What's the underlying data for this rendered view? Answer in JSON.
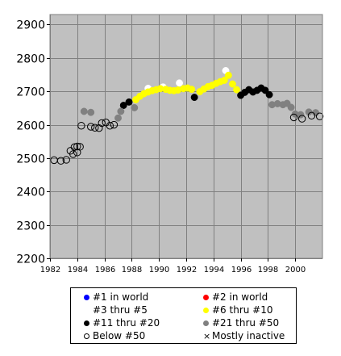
{
  "chart_data": {
    "type": "scatter",
    "title": "",
    "xlabel": "",
    "ylabel": "",
    "xlim": [
      1982,
      2002
    ],
    "ylim": [
      2200,
      2930
    ],
    "x_ticks": [
      1982,
      1984,
      1986,
      1988,
      1990,
      1992,
      1994,
      1996,
      1998,
      2000
    ],
    "y_ticks": [
      2200,
      2300,
      2400,
      2500,
      2600,
      2700,
      2800,
      2900
    ],
    "x_tick_labels": [
      "1982",
      "1984",
      "1986",
      "1988",
      "1990",
      "1992",
      "1994",
      "1996",
      "1998",
      "2000"
    ],
    "y_tick_labels": [
      "2200",
      "2300",
      "2400",
      "2500",
      "2600",
      "2700",
      "2800",
      "2900"
    ],
    "grid": true,
    "legend_placement": "bottom",
    "plot_background": "#c0c0c0",
    "series": [
      {
        "name": "#1 in world",
        "color": "#0000ff",
        "marker": "filled",
        "points": []
      },
      {
        "name": "#2 in world",
        "color": "#ff0000",
        "marker": "filled",
        "points": []
      },
      {
        "name": "#3 thru #5",
        "color": "#ffffff",
        "marker": "filled",
        "points": [
          [
            1989.2,
            2709
          ],
          [
            1990.3,
            2713
          ],
          [
            1991.5,
            2725
          ],
          [
            1994.9,
            2762
          ]
        ]
      },
      {
        "name": "#6 thru #10",
        "color": "#ffff00",
        "marker": "filled",
        "points": [
          [
            1988.3,
            2675
          ],
          [
            1988.6,
            2685
          ],
          [
            1988.9,
            2693
          ],
          [
            1989.2,
            2698
          ],
          [
            1989.5,
            2702
          ],
          [
            1989.8,
            2705
          ],
          [
            1990.1,
            2708
          ],
          [
            1990.5,
            2706
          ],
          [
            1990.8,
            2703
          ],
          [
            1991.1,
            2702
          ],
          [
            1991.4,
            2704
          ],
          [
            1991.8,
            2708
          ],
          [
            1992.1,
            2710
          ],
          [
            1992.4,
            2706
          ],
          [
            1993.0,
            2699
          ],
          [
            1993.3,
            2707
          ],
          [
            1993.6,
            2714
          ],
          [
            1993.9,
            2718
          ],
          [
            1994.2,
            2724
          ],
          [
            1994.5,
            2729
          ],
          [
            1994.8,
            2733
          ],
          [
            1995.1,
            2748
          ],
          [
            1995.4,
            2722
          ],
          [
            1995.7,
            2705
          ]
        ]
      },
      {
        "name": "#11 thru #20",
        "color": "#000000",
        "marker": "filled",
        "points": [
          [
            1987.4,
            2658
          ],
          [
            1987.8,
            2668
          ],
          [
            1992.6,
            2682
          ],
          [
            1996.0,
            2688
          ],
          [
            1996.3,
            2697
          ],
          [
            1996.6,
            2705
          ],
          [
            1996.9,
            2698
          ],
          [
            1997.2,
            2703
          ],
          [
            1997.5,
            2710
          ],
          [
            1997.8,
            2703
          ],
          [
            1998.1,
            2690
          ]
        ]
      },
      {
        "name": "#21 thru #50",
        "color": "#808080",
        "marker": "filled",
        "points": [
          [
            1984.5,
            2640
          ],
          [
            1985.0,
            2637
          ],
          [
            1987.0,
            2620
          ],
          [
            1987.2,
            2640
          ],
          [
            1988.2,
            2651
          ],
          [
            1998.3,
            2660
          ],
          [
            1998.7,
            2663
          ],
          [
            1999.1,
            2660
          ],
          [
            1999.4,
            2664
          ],
          [
            1999.7,
            2652
          ],
          [
            2000.0,
            2632
          ],
          [
            2000.4,
            2630
          ],
          [
            2001.0,
            2638
          ],
          [
            2001.5,
            2636
          ]
        ]
      },
      {
        "name": "Below #50",
        "color": "#000000",
        "marker": "hollow",
        "points": [
          [
            1982.3,
            2494
          ],
          [
            1982.8,
            2492
          ],
          [
            1983.2,
            2495
          ],
          [
            1983.5,
            2522
          ],
          [
            1983.8,
            2533
          ],
          [
            1984.0,
            2535
          ],
          [
            1983.7,
            2512
          ],
          [
            1984.0,
            2517
          ],
          [
            1984.2,
            2534
          ],
          [
            1984.3,
            2597
          ],
          [
            1985.0,
            2594
          ],
          [
            1985.3,
            2591
          ],
          [
            1985.6,
            2590
          ],
          [
            1985.8,
            2605
          ],
          [
            1986.1,
            2607
          ],
          [
            1986.4,
            2597
          ],
          [
            1986.7,
            2600
          ],
          [
            1999.9,
            2622
          ],
          [
            2000.5,
            2618
          ],
          [
            2001.2,
            2627
          ],
          [
            2001.8,
            2625
          ]
        ]
      },
      {
        "name": "Mostly inactive",
        "color": "#000000",
        "marker": "x",
        "points": []
      }
    ]
  }
}
